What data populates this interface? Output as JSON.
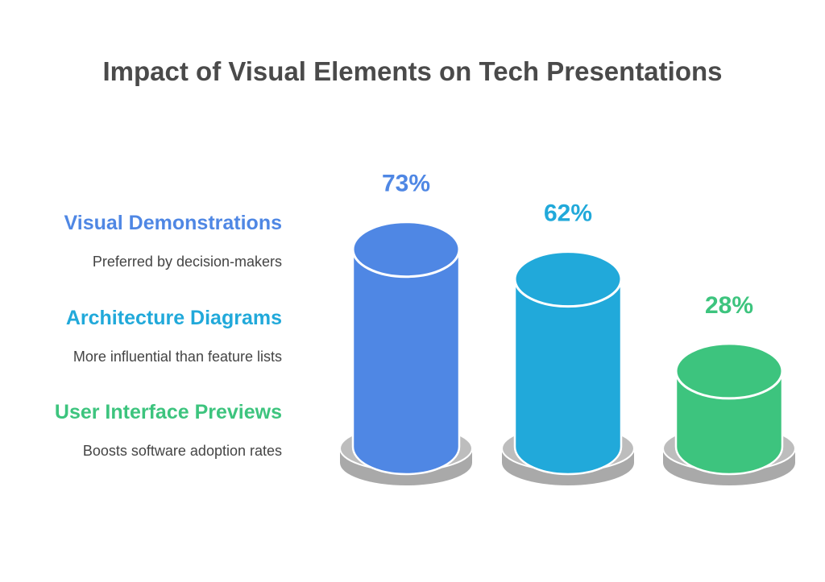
{
  "chart_data": {
    "type": "bar",
    "title": "Impact of Visual Elements on Tech Presentations",
    "unit": "%",
    "categories": [
      "Visual Demonstrations",
      "Architecture Diagrams",
      "User Interface Previews"
    ],
    "values": [
      73,
      62,
      28
    ],
    "labels": [
      "73%",
      "62%",
      "28%"
    ],
    "descriptions": [
      "Preferred by decision-makers",
      "More influential than feature lists",
      "Boosts software adoption rates"
    ],
    "colors": [
      "#4f87e4",
      "#21a9da",
      "#3dc47e"
    ],
    "label_colors": [
      "#4f87e4",
      "#21a9da",
      "#3dc47e"
    ],
    "base_color": "#bdbdbd"
  }
}
